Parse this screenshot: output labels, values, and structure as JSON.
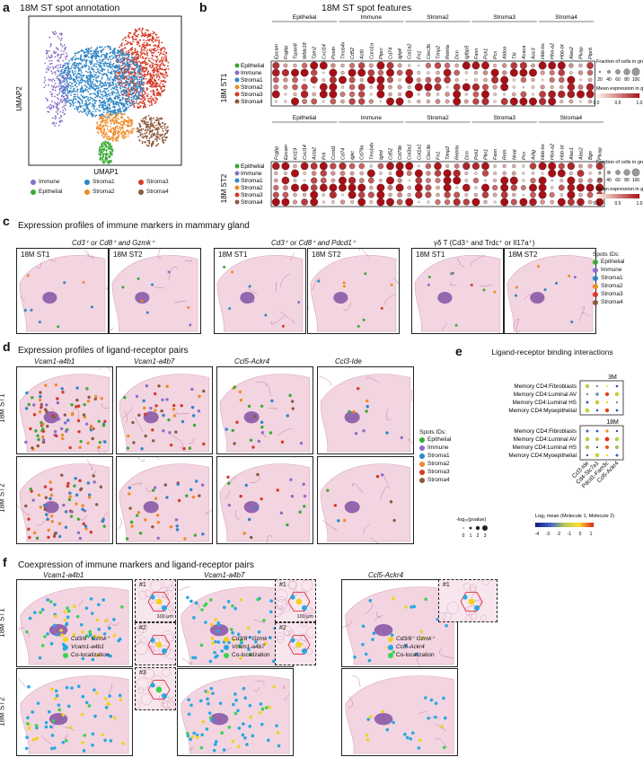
{
  "panels": {
    "a": "a",
    "b": "b",
    "c": "c",
    "d": "d",
    "e": "e",
    "f": "f"
  },
  "colors": {
    "Epithelial": "#3aaa35",
    "Immune": "#8a6fc7",
    "Stroma1": "#2f86c6",
    "Stroma2": "#f08a24",
    "Stroma3": "#d53a26",
    "Stroma4": "#8c5a3c",
    "tissue": "#f3d4e1",
    "tissueStroke": "#d8a9bf"
  },
  "a": {
    "title": "18M ST spot annotation",
    "xlabel": "UMAP1",
    "ylabel": "UMAP2",
    "legend": [
      "Immune",
      "Stroma1",
      "Stroma3",
      "Epithelial",
      "Stroma2",
      "Stroma4"
    ]
  },
  "b": {
    "title": "18M ST spot features",
    "groups": [
      "Epithelial",
      "Immune",
      "Stroma2",
      "Stroma3",
      "Stroma4"
    ],
    "row_st1": "18M ST1",
    "row_st2": "18M ST2",
    "cell_types": [
      "Epithelial",
      "Immune",
      "Stroma1",
      "Stroma2",
      "Stroma3",
      "Stroma4"
    ],
    "genes_top": [
      "Epcam",
      "Fcgbp",
      "Tspan8",
      "Wfdc18",
      "Tpm2",
      "Cxcl14",
      "Postn",
      "Tmsb4x",
      "Cd52",
      "Actb",
      "Coro1a",
      "Ptprc",
      "Cd74",
      "Ighj4",
      "Col1a2",
      "Fn1",
      "Clec3b",
      "Timp2",
      "Retnla",
      "Dcn",
      "Igfbp5",
      "Fasn",
      "Pck1",
      "Pcx",
      "Aldoa",
      "Tkt",
      "Acaca",
      "Aoc3",
      "Hbb-bs",
      "Hba-a2",
      "Hbb-bt",
      "Alas2",
      "Plvap",
      "Ptprb"
    ],
    "genes_bottom": [
      "Fcgbp",
      "Epcam",
      "Krt19",
      "Cxcl14",
      "Acta2",
      "Prlr",
      "Ccnd1",
      "Cd74",
      "Igkc",
      "Cd79a",
      "Tmsb4x",
      "Ighd",
      "Cd52",
      "Cd79b",
      "Col3a1",
      "Col1a1",
      "Clec3b",
      "Fn1",
      "Timp2",
      "Retnla",
      "Dcn",
      "Pck1",
      "Plin1",
      "Fasn",
      "Retn",
      "Nnat",
      "Pcx",
      "Adig",
      "Hbb-bs",
      "Hba-a2",
      "Hbb-bt",
      "Alas1",
      "Alas2",
      "Bgn",
      "Plvap"
    ],
    "size_legend_title": "Fraction of cells in group (%)",
    "size_ticks": [
      "20",
      "40",
      "60",
      "80",
      "100"
    ],
    "color_legend_title": "Mean expression in group",
    "color_ticks": [
      "0.0",
      "0.5",
      "1.0"
    ]
  },
  "c": {
    "title": "Expression profiles of immune markers in mammary gland",
    "subtitles": [
      "Cd3⁺ or Cd8⁺ and Gzmk⁺",
      "Cd3⁺ or Cd8⁺ and Pdcd1⁺",
      "γδ T (Cd3⁺ and Trdc⁺ or Il17a⁺)"
    ],
    "tiles": [
      "18M ST1",
      "18M ST2",
      "18M ST1",
      "18M ST2",
      "18M ST1",
      "18M ST2"
    ],
    "legend_title": "Spots IDs:",
    "legend": [
      "Epithelial",
      "Immune",
      "Stroma1",
      "Stroma2",
      "Stroma3",
      "Stroma4"
    ]
  },
  "d": {
    "title": "Expression profiles of ligand-receptor pairs",
    "columns": [
      "Vcam1-a4b1",
      "Vcam1-a4b7",
      "Ccl5-Ackr4",
      "Ccl3-Ide"
    ],
    "rows": [
      "18M ST1",
      "18M ST2"
    ],
    "legend_title": "Spots IDs:",
    "legend": [
      "Epithelial",
      "Immune",
      "Stroma1",
      "Stroma2",
      "Stroma3",
      "Stroma4"
    ]
  },
  "e": {
    "title": "Ligand-receptor binding interactions",
    "block_3m": "3M",
    "block_18m": "18M",
    "rows": [
      "Memory CD4:Fibroblasts",
      "Memory CD4:Luminal AV",
      "Memory CD4:Luminal HS",
      "Memory CD4:Myoepithelial"
    ],
    "cols": [
      "Ccl3-Ide",
      "Cd4-Slc7a1",
      "Pdcd1-Fam3c",
      "Ccl5-Ackr4"
    ],
    "pval_title": "-log₁₀(pvalue)",
    "pval_ticks": [
      "0",
      "1",
      "2",
      "3"
    ],
    "mean_title": "Log₂ mean (Molecule 1, Molecule 2)",
    "mean_ticks": [
      "-4",
      "-3",
      "-2",
      "-1",
      "0",
      "1"
    ]
  },
  "f": {
    "title": "Coexpression of immune markers and ligand-receptor pairs",
    "columns": [
      "Vcam1-a4b1",
      "Vcam1-a4b7",
      "Ccl5-Ackr4"
    ],
    "rows": [
      "18M ST1",
      "18M ST2"
    ],
    "insets": [
      "#1",
      "#2",
      "#3"
    ],
    "scalebar": "100 μm",
    "leg1": [
      "Cd3/8⁺ Gzmk⁺",
      "Vcam1-a4b1",
      "Co-localization"
    ],
    "leg2": [
      "Cd3/8⁺ Gzmk⁺",
      "Vcam1-a4b7",
      "Co-localization"
    ],
    "leg3": [
      "Cd3/8⁺ Gzmk⁺",
      "Ccl5-Ackr4",
      "Co-localization"
    ]
  }
}
